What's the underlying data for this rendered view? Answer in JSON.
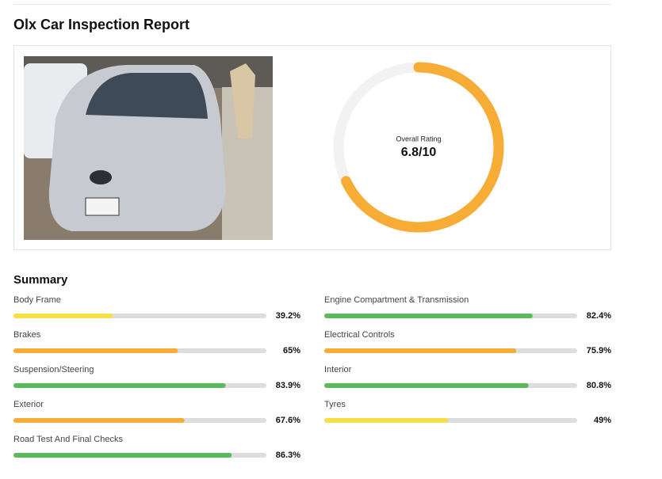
{
  "header": {
    "title": "Olx Car Inspection Report"
  },
  "rating": {
    "label": "Overall Rating",
    "value": 6.8,
    "max": 10,
    "value_label": "6.8/10",
    "color": "#f7ad35",
    "track_color": "#f2f2f2"
  },
  "summary": {
    "title": "Summary",
    "range": [
      0,
      100
    ],
    "track_color": "#dddddd",
    "columns": [
      [
        {
          "label": "Body Frame",
          "value": 39.2,
          "value_label": "39.2%",
          "color": "#f6e046"
        },
        {
          "label": "Brakes",
          "value": 65,
          "value_label": "65%",
          "color": "#f5ad35"
        },
        {
          "label": "Suspension/Steering",
          "value": 83.9,
          "value_label": "83.9%",
          "color": "#5cb85c"
        },
        {
          "label": "Exterior",
          "value": 67.6,
          "value_label": "67.6%",
          "color": "#f5ad35"
        },
        {
          "label": "Road Test And Final Checks",
          "value": 86.3,
          "value_label": "86.3%",
          "color": "#5cb85c"
        }
      ],
      [
        {
          "label": "Engine Compartment & Transmission",
          "value": 82.4,
          "value_label": "82.4%",
          "color": "#5cb85c"
        },
        {
          "label": "Electrical Controls",
          "value": 75.9,
          "value_label": "75.9%",
          "color": "#f5ad35"
        },
        {
          "label": "Interior",
          "value": 80.8,
          "value_label": "80.8%",
          "color": "#5cb85c"
        },
        {
          "label": "Tyres",
          "value": 49,
          "value_label": "49%",
          "color": "#f6e046"
        }
      ]
    ]
  }
}
